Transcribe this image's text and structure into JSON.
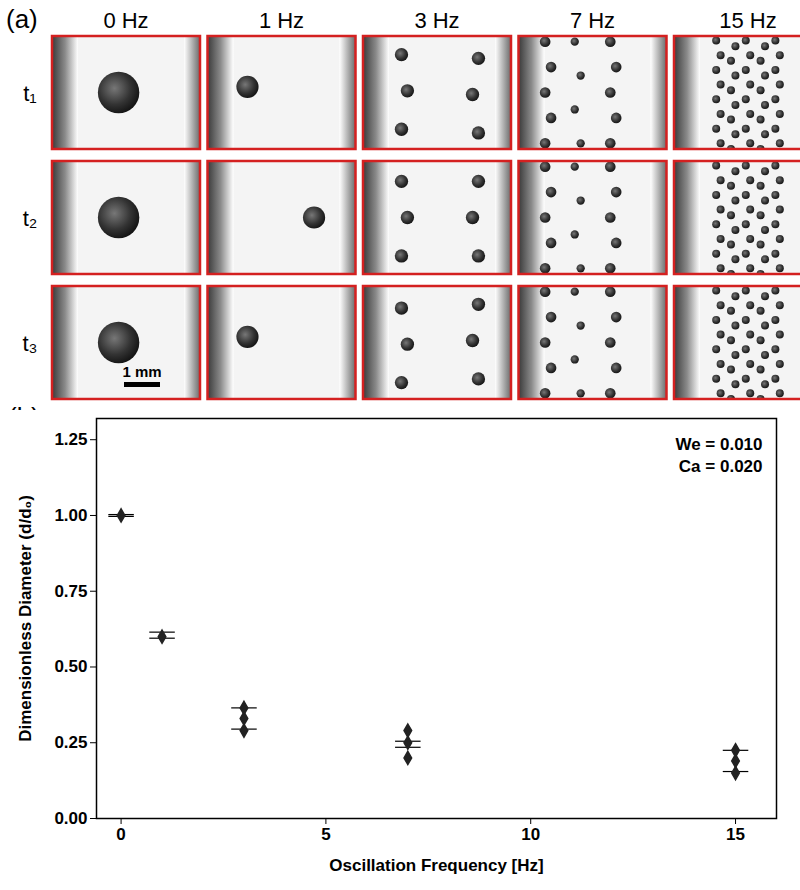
{
  "panel_a": {
    "label": "(a)",
    "columns": [
      "0 Hz",
      "1 Hz",
      "3 Hz",
      "7 Hz",
      "15 Hz"
    ],
    "rows": [
      "t₁",
      "t₂",
      "t₃"
    ],
    "scale_bar": "1 mm"
  },
  "chart_data": {
    "type": "scatter",
    "panel_label": "(b)",
    "x_label": "Oscillation Frequency [Hz]",
    "y_label": "Dimensionless Diameter (d/d₀)",
    "x": [
      0,
      1,
      3,
      3,
      3,
      7,
      7,
      7,
      15,
      15,
      15
    ],
    "values": [
      1.0,
      0.6,
      0.365,
      0.33,
      0.29,
      0.29,
      0.25,
      0.2,
      0.225,
      0.19,
      0.15
    ],
    "error_bars": {
      "x": [
        0,
        1,
        3,
        7,
        15
      ],
      "center": [
        1.0,
        0.605,
        0.33,
        0.245,
        0.19
      ],
      "error": [
        0.003,
        0.01,
        0.035,
        0.01,
        0.035
      ]
    },
    "color": "#222222",
    "marker": "diamond",
    "annotations": [
      "We = 0.010",
      "Ca = 0.020"
    ],
    "xlim": [
      -0.6,
      16
    ],
    "xticks": [
      0,
      5,
      10,
      15
    ],
    "ylim": [
      0,
      1.32
    ],
    "yticks": [
      {
        "value": 0,
        "label": "0.00"
      },
      {
        "value": 0.25,
        "label": "0.25"
      },
      {
        "value": 0.5,
        "label": "0.50"
      },
      {
        "value": 0.75,
        "label": "0.75"
      },
      {
        "value": 1.0,
        "label": "1.00"
      },
      {
        "value": 1.25,
        "label": "1.25"
      }
    ]
  }
}
